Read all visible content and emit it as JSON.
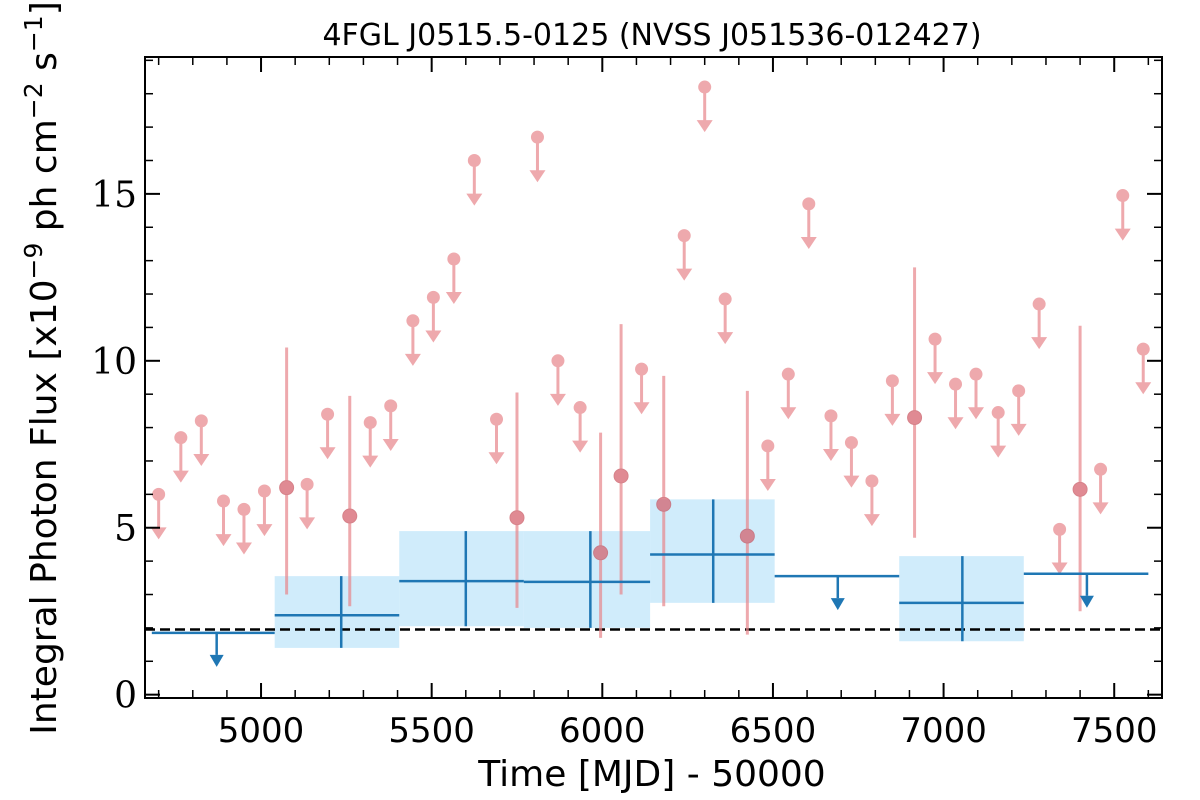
{
  "chart_data": {
    "type": "scatter",
    "title": "4FGL J0515.5-0125 (NVSS J051536-012427)",
    "xlabel": "Time [MJD] - 50000",
    "ylabel": "Integral Photon Flux [x10^-9 ph cm^-2 s^-1]",
    "ylabel_parts": {
      "prefix": "Integral Photon Flux [x10",
      "exp1": "−9",
      "mid": " ph cm",
      "exp2": "−2",
      "mid2": " s",
      "exp3": "−1",
      "suffix": "]"
    },
    "xlim": [
      4660,
      7640
    ],
    "ylim": [
      -0.1,
      19.1
    ],
    "xticks": [
      5000,
      5500,
      6000,
      6500,
      7000,
      7500
    ],
    "yticks": [
      0,
      5,
      10,
      15
    ],
    "grid": false,
    "colors": {
      "short_bins": "#e8868b",
      "long_bins": "#1f77b4",
      "long_band": "#b3e0f8",
      "baseline": "#000000"
    },
    "baseline_flux": 1.95,
    "long_bins": [
      {
        "x0": 4680,
        "x1": 5040,
        "y": 1.85,
        "upper_limit": true,
        "ul_x": 4870
      },
      {
        "x0": 5040,
        "x1": 5405,
        "y": 2.38,
        "ylo": 1.4,
        "yhi": 3.55,
        "xc": 5235
      },
      {
        "x0": 5405,
        "x1": 5770,
        "y": 3.4,
        "ylo": 2.05,
        "yhi": 4.9,
        "xc": 5600
      },
      {
        "x0": 5770,
        "x1": 6140,
        "y": 3.38,
        "ylo": 2.0,
        "yhi": 4.9,
        "xc": 5965
      },
      {
        "x0": 6140,
        "x1": 6505,
        "y": 4.2,
        "ylo": 2.75,
        "yhi": 5.85,
        "xc": 6325
      },
      {
        "x0": 6505,
        "x1": 6870,
        "y": 3.55,
        "upper_limit": true,
        "ul_x": 6690
      },
      {
        "x0": 6870,
        "x1": 7235,
        "y": 2.75,
        "ylo": 1.6,
        "yhi": 4.15,
        "xc": 7055
      },
      {
        "x0": 7235,
        "x1": 7600,
        "y": 3.62,
        "upper_limit": true,
        "ul_x": 7420
      }
    ],
    "short_bins": [
      {
        "x": 4700,
        "y": 6.0,
        "ul": true
      },
      {
        "x": 4765,
        "y": 7.7,
        "ul": true
      },
      {
        "x": 4825,
        "y": 8.2,
        "ul": true
      },
      {
        "x": 4890,
        "y": 5.8,
        "ul": true
      },
      {
        "x": 4950,
        "y": 5.55,
        "ul": true
      },
      {
        "x": 5010,
        "y": 6.1,
        "ul": true
      },
      {
        "x": 5075,
        "y": 6.2,
        "ul": false,
        "ylo": 3.0,
        "yhi": 10.4
      },
      {
        "x": 5135,
        "y": 6.3,
        "ul": true
      },
      {
        "x": 5195,
        "y": 8.4,
        "ul": true
      },
      {
        "x": 5260,
        "y": 5.35,
        "ul": false,
        "ylo": 2.65,
        "yhi": 8.95
      },
      {
        "x": 5320,
        "y": 8.15,
        "ul": true
      },
      {
        "x": 5380,
        "y": 8.65,
        "ul": true
      },
      {
        "x": 5445,
        "y": 11.2,
        "ul": true
      },
      {
        "x": 5505,
        "y": 11.9,
        "ul": true
      },
      {
        "x": 5565,
        "y": 13.05,
        "ul": true
      },
      {
        "x": 5625,
        "y": 16.0,
        "ul": true
      },
      {
        "x": 5690,
        "y": 8.25,
        "ul": true
      },
      {
        "x": 5750,
        "y": 5.3,
        "ul": false,
        "ylo": 2.6,
        "yhi": 9.05
      },
      {
        "x": 5810,
        "y": 16.7,
        "ul": true
      },
      {
        "x": 5870,
        "y": 10.0,
        "ul": true
      },
      {
        "x": 5935,
        "y": 8.6,
        "ul": true
      },
      {
        "x": 5995,
        "y": 4.25,
        "ul": false,
        "ylo": 1.7,
        "yhi": 7.85
      },
      {
        "x": 6055,
        "y": 6.55,
        "ul": false,
        "ylo": 3.0,
        "yhi": 11.1
      },
      {
        "x": 6115,
        "y": 9.75,
        "ul": true
      },
      {
        "x": 6180,
        "y": 5.7,
        "ul": false,
        "ylo": 2.65,
        "yhi": 9.55
      },
      {
        "x": 6240,
        "y": 13.75,
        "ul": true
      },
      {
        "x": 6300,
        "y": 18.2,
        "ul": true
      },
      {
        "x": 6360,
        "y": 11.85,
        "ul": true
      },
      {
        "x": 6425,
        "y": 4.75,
        "ul": false,
        "ylo": 1.8,
        "yhi": 9.1
      },
      {
        "x": 6485,
        "y": 7.45,
        "ul": true
      },
      {
        "x": 6545,
        "y": 9.6,
        "ul": true
      },
      {
        "x": 6605,
        "y": 14.7,
        "ul": true
      },
      {
        "x": 6670,
        "y": 8.35,
        "ul": true
      },
      {
        "x": 6730,
        "y": 7.55,
        "ul": true
      },
      {
        "x": 6790,
        "y": 6.4,
        "ul": true
      },
      {
        "x": 6850,
        "y": 9.4,
        "ul": true
      },
      {
        "x": 6915,
        "y": 8.3,
        "ul": false,
        "ylo": 4.7,
        "yhi": 12.8
      },
      {
        "x": 6975,
        "y": 10.65,
        "ul": true
      },
      {
        "x": 7035,
        "y": 9.3,
        "ul": true
      },
      {
        "x": 7095,
        "y": 9.6,
        "ul": true
      },
      {
        "x": 7160,
        "y": 8.45,
        "ul": true
      },
      {
        "x": 7220,
        "y": 9.1,
        "ul": true
      },
      {
        "x": 7280,
        "y": 11.7,
        "ul": true
      },
      {
        "x": 7340,
        "y": 4.95,
        "ul": true
      },
      {
        "x": 7400,
        "y": 6.15,
        "ul": false,
        "ylo": 2.5,
        "yhi": 11.05
      },
      {
        "x": 7460,
        "y": 6.75,
        "ul": true
      },
      {
        "x": 7525,
        "y": 14.95,
        "ul": true
      },
      {
        "x": 7585,
        "y": 10.35,
        "ul": true
      }
    ]
  }
}
